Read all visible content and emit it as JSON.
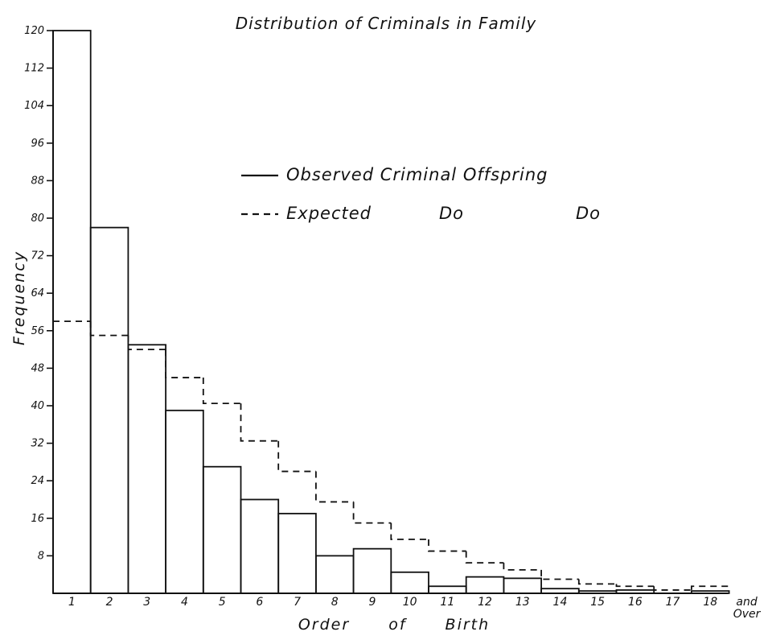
{
  "chart_data": {
    "type": "bar",
    "title": "Distribution of Criminals in Family",
    "xlabel": "Order of Birth",
    "ylabel": "Frequency",
    "ylim": [
      0,
      120
    ],
    "yticks": [
      8,
      16,
      24,
      32,
      40,
      48,
      56,
      64,
      72,
      80,
      88,
      96,
      104,
      112,
      120
    ],
    "ytick_labels": [
      "8",
      "16",
      "24",
      "32",
      "40",
      "48",
      "56",
      "64",
      "72",
      "80",
      "88",
      "96",
      "104",
      "112",
      "120"
    ],
    "categories": [
      "1",
      "2",
      "3",
      "4",
      "5",
      "6",
      "7",
      "8",
      "9",
      "10",
      "11",
      "12",
      "13",
      "14",
      "15",
      "16",
      "17",
      "18"
    ],
    "last_category_note": "and Over",
    "legend_position": "top-center",
    "series": [
      {
        "name": "Observed Criminal Offspring",
        "style": "solid",
        "values": [
          120,
          78,
          53,
          39,
          27,
          20,
          17,
          8,
          9.5,
          4.5,
          1.5,
          3.5,
          3.2,
          1,
          0.5,
          0.7,
          0,
          0.5
        ]
      },
      {
        "name": "Expected Criminal Offspring",
        "legend_label": "Expected",
        "ditto_marks": [
          "Do",
          "Do"
        ],
        "style": "dashed",
        "values": [
          58,
          55,
          52,
          46,
          40.5,
          32.5,
          26,
          19.5,
          15,
          11.5,
          9,
          6.5,
          5,
          3,
          2,
          1.5,
          0.7,
          1.5
        ]
      }
    ]
  },
  "colors": {
    "ink": "#111111",
    "background": "#ffffff"
  }
}
